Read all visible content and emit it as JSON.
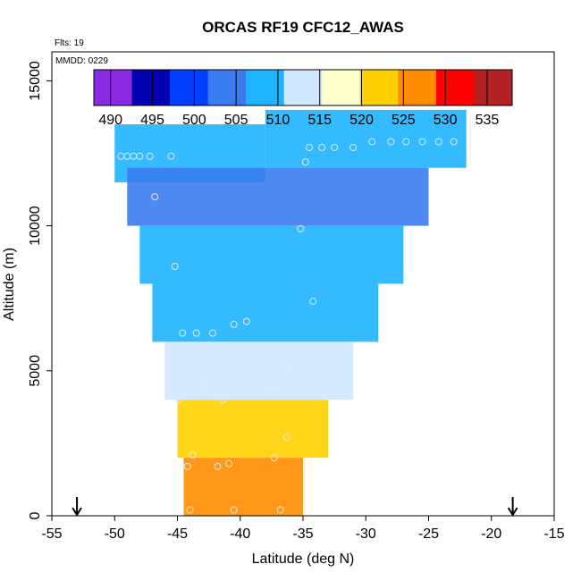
{
  "chart_data": {
    "type": "heatmap",
    "title": "ORCAS RF19 CFC12_AWAS",
    "flights_note": "Flts: 19",
    "date_note": "MMDD: 0229",
    "xlabel": "Latitude (deg N)",
    "ylabel": "Altitude (m)",
    "xlim": [
      -55,
      -15
    ],
    "ylim": [
      0,
      16000
    ],
    "x_ticks": [
      -55,
      -50,
      -45,
      -40,
      -35,
      -30,
      -25,
      -20,
      -15
    ],
    "y_ticks": [
      0,
      5000,
      10000,
      15000
    ],
    "colorbar": {
      "ticks": [
        490,
        495,
        500,
        505,
        510,
        515,
        520,
        525,
        530,
        535
      ],
      "range": [
        488,
        538
      ],
      "colors": [
        "#8a2be2",
        "#0000b0",
        "#0040ff",
        "#3a7cf0",
        "#1eb4ff",
        "#cfe8ff",
        "#ffffcc",
        "#ffd000",
        "#ff8c00",
        "#ff0000",
        "#b22222"
      ]
    },
    "arrows": [
      -53,
      -18.3
    ],
    "contour_regions": [
      {
        "alt": 13000,
        "lat_min": -38,
        "lat_max": -22,
        "value": 508
      },
      {
        "alt": 12500,
        "lat_min": -50,
        "lat_max": -38,
        "value": 507
      },
      {
        "alt": 11000,
        "lat_min": -49,
        "lat_max": -25,
        "value": 506
      },
      {
        "alt": 9000,
        "lat_min": -48,
        "lat_max": -27,
        "value": 507
      },
      {
        "alt": 7000,
        "lat_min": -47,
        "lat_max": -29,
        "value": 509
      },
      {
        "alt": 5000,
        "lat_min": -46,
        "lat_max": -31,
        "value": 512
      },
      {
        "alt": 3000,
        "lat_min": -45,
        "lat_max": -33,
        "value": 522
      },
      {
        "alt": 1000,
        "lat_min": -44.5,
        "lat_max": -35,
        "value": 528
      }
    ],
    "samples": [
      {
        "lat": -49.5,
        "alt": 12400
      },
      {
        "lat": -49,
        "alt": 12400
      },
      {
        "lat": -48.5,
        "alt": 12400
      },
      {
        "lat": -48,
        "alt": 12400
      },
      {
        "lat": -47.2,
        "alt": 12400
      },
      {
        "lat": -46.8,
        "alt": 11000
      },
      {
        "lat": -45.2,
        "alt": 8600
      },
      {
        "lat": -44.6,
        "alt": 6300
      },
      {
        "lat": -43.5,
        "alt": 6300
      },
      {
        "lat": -42.2,
        "alt": 6300
      },
      {
        "lat": -40.5,
        "alt": 6600
      },
      {
        "lat": -39.5,
        "alt": 6700
      },
      {
        "lat": -37.5,
        "alt": 4400
      },
      {
        "lat": -36.3,
        "alt": 5000
      },
      {
        "lat": -35.2,
        "alt": 9900
      },
      {
        "lat": -34.8,
        "alt": 12200
      },
      {
        "lat": -44.9,
        "alt": 4000
      },
      {
        "lat": -42.9,
        "alt": 4500
      },
      {
        "lat": -41.4,
        "alt": 4000
      },
      {
        "lat": -43.8,
        "alt": 2100
      },
      {
        "lat": -44.2,
        "alt": 1700
      },
      {
        "lat": -41.8,
        "alt": 1700
      },
      {
        "lat": -40.9,
        "alt": 1800
      },
      {
        "lat": -37.3,
        "alt": 2000
      },
      {
        "lat": -36.3,
        "alt": 2700
      },
      {
        "lat": -36.8,
        "alt": 200
      },
      {
        "lat": -40.5,
        "alt": 200
      },
      {
        "lat": -44.0,
        "alt": 200
      },
      {
        "lat": -34.5,
        "alt": 12700
      },
      {
        "lat": -33.5,
        "alt": 12700
      },
      {
        "lat": -32.5,
        "alt": 12700
      },
      {
        "lat": -31.0,
        "alt": 12700
      },
      {
        "lat": -29.5,
        "alt": 12900
      },
      {
        "lat": -28.0,
        "alt": 12900
      },
      {
        "lat": -26.8,
        "alt": 12900
      },
      {
        "lat": -25.5,
        "alt": 12900
      },
      {
        "lat": -24.2,
        "alt": 12900
      },
      {
        "lat": -23.0,
        "alt": 12900
      },
      {
        "lat": -34.2,
        "alt": 7400
      },
      {
        "lat": -45.5,
        "alt": 12400
      }
    ]
  }
}
